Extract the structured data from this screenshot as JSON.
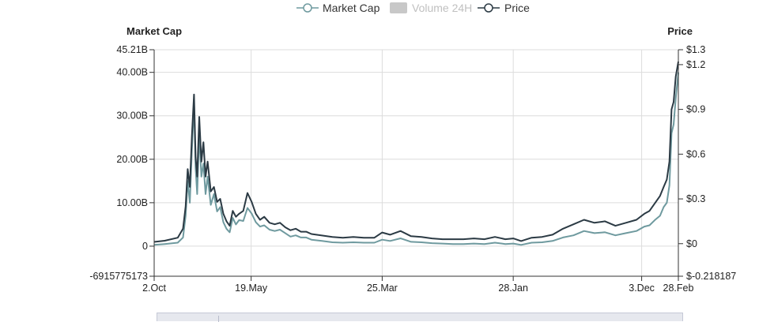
{
  "legend": {
    "market_cap": "Market Cap",
    "volume": "Volume 24H",
    "price": "Price"
  },
  "colors": {
    "market_cap": "#6f9a9f",
    "price": "#2b3a44",
    "volume_disabled": "#c8c8c8",
    "grid": "#dcdcdc"
  },
  "chart_data": {
    "type": "line",
    "left_axis_title": "Market Cap",
    "right_axis_title": "Price",
    "left_ticks": [
      "45.21B",
      "40.00B",
      "30.00B",
      "20.00B",
      "10.00B",
      "0",
      "-6915775173"
    ],
    "left_tick_values": [
      45.21,
      40,
      30,
      20,
      10,
      0,
      -6.915775173
    ],
    "left_ylim": [
      -6.915775173,
      45.21
    ],
    "right_ticks": [
      "$1.3",
      "$1.2",
      "$0.9",
      "$0.6",
      "$0.3",
      "$0",
      "$-0.218187"
    ],
    "right_tick_values": [
      1.3,
      1.2,
      0.9,
      0.6,
      0.3,
      0,
      -0.218187
    ],
    "right_ylim": [
      -0.218187,
      1.3
    ],
    "x_ticks": [
      "2.Oct",
      "19.May",
      "25.Mar",
      "28.Jan",
      "3.Dec",
      "28.Feb"
    ],
    "x_tick_positions": [
      0,
      0.185,
      0.435,
      0.685,
      0.93,
      1.0
    ],
    "grid": true,
    "legend_position": "top-center",
    "series": [
      {
        "name": "Market Cap",
        "axis": "left",
        "color": "#6f9a9f",
        "x": [
          0,
          0.02,
          0.045,
          0.055,
          0.06,
          0.064,
          0.068,
          0.072,
          0.076,
          0.079,
          0.082,
          0.086,
          0.09,
          0.094,
          0.098,
          0.102,
          0.108,
          0.114,
          0.12,
          0.126,
          0.132,
          0.138,
          0.144,
          0.15,
          0.156,
          0.162,
          0.17,
          0.178,
          0.186,
          0.194,
          0.202,
          0.21,
          0.22,
          0.23,
          0.24,
          0.25,
          0.26,
          0.27,
          0.28,
          0.29,
          0.3,
          0.32,
          0.34,
          0.36,
          0.38,
          0.4,
          0.42,
          0.435,
          0.45,
          0.47,
          0.49,
          0.51,
          0.53,
          0.55,
          0.57,
          0.59,
          0.61,
          0.63,
          0.65,
          0.67,
          0.685,
          0.7,
          0.72,
          0.74,
          0.76,
          0.78,
          0.8,
          0.82,
          0.84,
          0.86,
          0.88,
          0.9,
          0.92,
          0.935,
          0.945,
          0.955,
          0.965,
          0.972,
          0.978,
          0.983,
          0.987,
          0.991,
          0.995,
          1.0
        ],
        "values": [
          0.3,
          0.5,
          0.8,
          2.0,
          7.0,
          15.0,
          10.0,
          22.0,
          33.0,
          18.0,
          12.0,
          26.0,
          16.0,
          19.0,
          12.0,
          16.0,
          9.5,
          12.0,
          8.0,
          9.0,
          5.5,
          4.0,
          3.2,
          6.5,
          5.0,
          6.0,
          5.8,
          8.8,
          7.5,
          5.5,
          4.5,
          4.8,
          3.8,
          3.5,
          3.8,
          3.0,
          2.2,
          2.5,
          2.0,
          2.0,
          1.5,
          1.2,
          0.9,
          0.8,
          0.9,
          0.8,
          0.8,
          1.5,
          1.2,
          1.8,
          1.0,
          0.9,
          0.7,
          0.6,
          0.5,
          0.5,
          0.6,
          0.5,
          0.8,
          0.5,
          0.6,
          0.3,
          0.8,
          0.9,
          1.2,
          2.0,
          2.5,
          3.5,
          3.0,
          3.2,
          2.5,
          3.0,
          3.5,
          4.5,
          4.8,
          6.0,
          7.0,
          9.0,
          10.0,
          14.0,
          26.0,
          28.0,
          34.0,
          40.0
        ]
      },
      {
        "name": "Price",
        "axis": "right",
        "color": "#2b3a44",
        "x": [
          0,
          0.02,
          0.045,
          0.055,
          0.06,
          0.064,
          0.068,
          0.072,
          0.076,
          0.079,
          0.082,
          0.086,
          0.09,
          0.094,
          0.098,
          0.102,
          0.108,
          0.114,
          0.12,
          0.126,
          0.132,
          0.138,
          0.144,
          0.15,
          0.156,
          0.162,
          0.17,
          0.178,
          0.186,
          0.194,
          0.202,
          0.21,
          0.22,
          0.23,
          0.24,
          0.25,
          0.26,
          0.27,
          0.28,
          0.29,
          0.3,
          0.32,
          0.34,
          0.36,
          0.38,
          0.4,
          0.42,
          0.435,
          0.45,
          0.47,
          0.49,
          0.51,
          0.53,
          0.55,
          0.57,
          0.59,
          0.61,
          0.63,
          0.65,
          0.67,
          0.685,
          0.7,
          0.72,
          0.74,
          0.76,
          0.78,
          0.8,
          0.82,
          0.84,
          0.86,
          0.88,
          0.9,
          0.92,
          0.935,
          0.945,
          0.955,
          0.965,
          0.972,
          0.978,
          0.983,
          0.987,
          0.991,
          0.995,
          1.0
        ],
        "values": [
          0.012,
          0.02,
          0.04,
          0.1,
          0.25,
          0.5,
          0.38,
          0.72,
          1.0,
          0.58,
          0.45,
          0.85,
          0.55,
          0.68,
          0.45,
          0.55,
          0.35,
          0.38,
          0.28,
          0.3,
          0.2,
          0.15,
          0.12,
          0.22,
          0.18,
          0.2,
          0.22,
          0.34,
          0.28,
          0.2,
          0.16,
          0.18,
          0.14,
          0.13,
          0.14,
          0.11,
          0.09,
          0.1,
          0.08,
          0.08,
          0.065,
          0.055,
          0.045,
          0.04,
          0.045,
          0.04,
          0.04,
          0.075,
          0.06,
          0.085,
          0.05,
          0.045,
          0.035,
          0.03,
          0.03,
          0.03,
          0.035,
          0.03,
          0.045,
          0.03,
          0.035,
          0.018,
          0.04,
          0.045,
          0.06,
          0.1,
          0.13,
          0.16,
          0.14,
          0.15,
          0.12,
          0.14,
          0.16,
          0.2,
          0.22,
          0.27,
          0.32,
          0.38,
          0.43,
          0.55,
          0.9,
          0.95,
          1.12,
          1.22
        ]
      }
    ]
  }
}
